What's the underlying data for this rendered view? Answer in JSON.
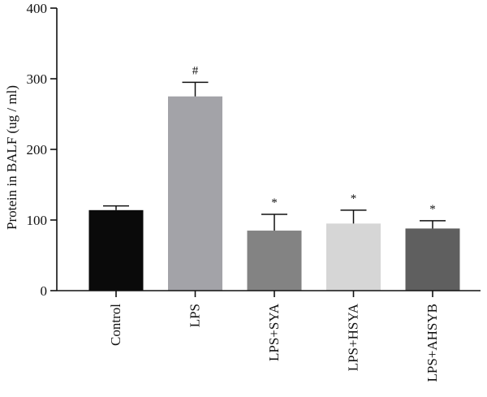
{
  "chart_data": {
    "type": "bar",
    "title": "",
    "xlabel": "",
    "ylabel": "Protein in BALF (ug / ml)",
    "ylim": [
      0,
      400
    ],
    "yticks": [
      0,
      100,
      200,
      300,
      400
    ],
    "grid": false,
    "categories": [
      "Control",
      "LPS",
      "LPS+SYA",
      "LPS+HSYA",
      "LPS+AHSYB"
    ],
    "values": [
      114,
      275,
      85,
      95,
      88
    ],
    "errors": [
      6,
      20,
      23,
      19,
      11
    ],
    "annotations": [
      "",
      "#",
      "*",
      "*",
      "*"
    ],
    "colors": [
      "#0a0a0a",
      "#a3a3a8",
      "#838383",
      "#d6d6d6",
      "#5f5f5f"
    ]
  }
}
